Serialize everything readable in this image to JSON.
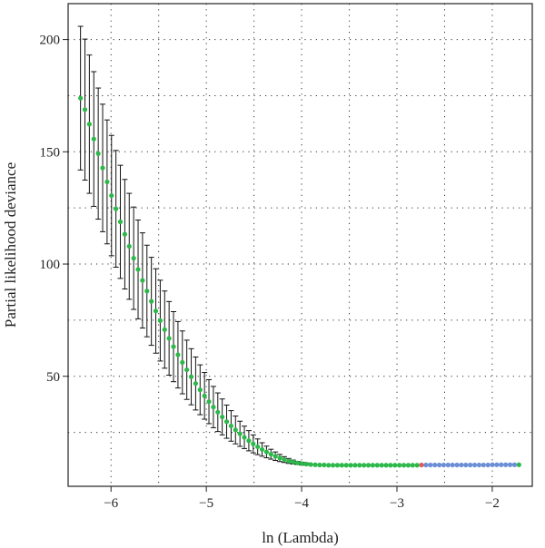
{
  "chart_data": {
    "type": "scatter",
    "xlabel": "ln (Lambda)",
    "ylabel": "Partial likelihood deviance",
    "xlim": [
      -6.45,
      -1.58
    ],
    "ylim": [
      1,
      216
    ],
    "x_ticks": [
      "−6",
      "−5",
      "−4",
      "−3",
      "−2"
    ],
    "y_ticks": [
      "50",
      "100",
      "150",
      "200"
    ],
    "grid": true,
    "error_bars": true,
    "highlight_x": -2.75,
    "colors": {
      "point_default": "#2db84a",
      "point_highlight": "#e05a5a",
      "point_flat": "#6b8fd6",
      "error_bar": "#111111",
      "grid": "#333333"
    },
    "x_start": -6.32,
    "x_end": -1.72,
    "n_points": 100,
    "x": [
      -6.32,
      -6.2735,
      -6.2271,
      -6.1806,
      -6.1341,
      -6.0877,
      -6.0412,
      -5.9947,
      -5.9483,
      -5.9018,
      -5.8553,
      -5.8089,
      -5.7624,
      -5.7159,
      -5.6695,
      -5.623,
      -5.5765,
      -5.5301,
      -5.4836,
      -5.4371,
      -5.3907,
      -5.3442,
      -5.2977,
      -5.2513,
      -5.2048,
      -5.1583,
      -5.1119,
      -5.0654,
      -5.0189,
      -4.9725,
      -4.926,
      -4.8795,
      -4.8331,
      -4.7866,
      -4.7401,
      -4.6937,
      -4.6472,
      -4.6007,
      -4.5543,
      -4.5078,
      -4.4613,
      -4.4149,
      -4.3684,
      -4.3219,
      -4.2755,
      -4.229,
      -4.1825,
      -4.1361,
      -4.0896,
      -4.0431,
      -3.9967,
      -3.9502,
      -3.9037,
      -3.8573,
      -3.8108,
      -3.7643,
      -3.7179,
      -3.6714,
      -3.6249,
      -3.5785,
      -3.532,
      -3.4855,
      -3.4391,
      -3.3926,
      -3.3461,
      -3.2997,
      -3.2532,
      -3.2067,
      -3.1603,
      -3.1138,
      -3.0673,
      -3.0209,
      -2.9744,
      -2.9279,
      -2.8815,
      -2.835,
      -2.7885,
      -2.7421,
      -2.6956,
      -2.6491,
      -2.6027,
      -2.5562,
      -2.5097,
      -2.4633,
      -2.4168,
      -2.3703,
      -2.3239,
      -2.2774,
      -2.2309,
      -2.1845,
      -2.138,
      -2.0915,
      -2.0451,
      -1.9986,
      -1.9521,
      -1.9057,
      -1.8592,
      -1.8127,
      -1.7663,
      -1.72
    ],
    "y": [
      173.9,
      168.8,
      162.3,
      155.7,
      149.2,
      142.8,
      136.6,
      130.5,
      124.6,
      118.8,
      113.3,
      107.9,
      102.6,
      97.6,
      92.7,
      88.0,
      83.4,
      79.1,
      74.8,
      70.8,
      66.9,
      63.2,
      59.6,
      56.2,
      52.9,
      49.8,
      46.8,
      44.0,
      41.3,
      38.7,
      36.3,
      34.0,
      31.9,
      29.8,
      27.9,
      26.1,
      24.4,
      22.8,
      21.3,
      19.9,
      18.6,
      17.4,
      16.3,
      15.3,
      14.4,
      13.6,
      12.9,
      12.3,
      11.8,
      11.4,
      11.1,
      10.9,
      10.7,
      10.6,
      10.5,
      10.5,
      10.4,
      10.4,
      10.4,
      10.4,
      10.4,
      10.4,
      10.4,
      10.4,
      10.4,
      10.4,
      10.4,
      10.4,
      10.4,
      10.4,
      10.4,
      10.4,
      10.4,
      10.4,
      10.4,
      10.4,
      10.4,
      10.5,
      10.5,
      10.5,
      10.5,
      10.5,
      10.5,
      10.5,
      10.5,
      10.5,
      10.5,
      10.5,
      10.5,
      10.5,
      10.5,
      10.5,
      10.5,
      10.6,
      10.6,
      10.6,
      10.6,
      10.6,
      10.6,
      10.6
    ],
    "err": [
      32.0,
      31.4,
      30.8,
      30.0,
      29.2,
      28.4,
      27.6,
      26.8,
      26.0,
      25.2,
      24.4,
      23.6,
      22.8,
      22.0,
      21.2,
      20.4,
      19.6,
      18.8,
      18.0,
      17.2,
      16.4,
      15.6,
      14.8,
      14.0,
      13.2,
      12.5,
      11.8,
      11.1,
      10.4,
      9.8,
      9.2,
      8.6,
      8.0,
      7.4,
      6.8,
      6.2,
      5.6,
      5.0,
      4.5,
      4.0,
      3.5,
      3.0,
      2.6,
      2.2,
      1.9,
      1.6,
      1.3,
      1.1,
      0.9,
      0.7,
      0.6,
      0.5,
      0.4,
      0.3,
      0.3,
      0.2,
      0.2,
      0.2,
      0.2,
      0.2,
      0.2,
      0.2,
      0.2,
      0.2,
      0.2,
      0.2,
      0.2,
      0.2,
      0.2,
      0.2,
      0.2,
      0.2,
      0.2,
      0.2,
      0.2,
      0.2,
      0.2,
      0.2,
      0.2,
      0.2,
      0.2,
      0.2,
      0.2,
      0.2,
      0.2,
      0.2,
      0.2,
      0.2,
      0.2,
      0.2,
      0.2,
      0.2,
      0.2,
      0.2,
      0.2,
      0.2,
      0.2,
      0.2,
      0.2,
      0.2
    ]
  }
}
